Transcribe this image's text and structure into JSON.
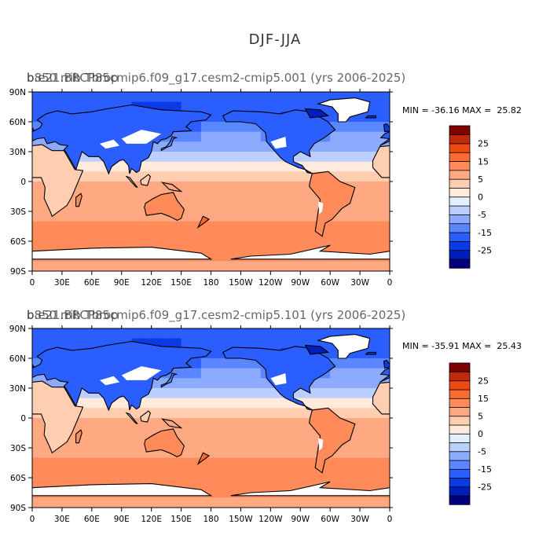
{
  "figure_title": "DJF-JJA",
  "x_ticks": [
    "0",
    "30E",
    "60E",
    "90E",
    "120E",
    "150E",
    "180",
    "150W",
    "120W",
    "90W",
    "60W",
    "30W",
    "0"
  ],
  "y_ticks": [
    "90N",
    "60N",
    "30N",
    "0",
    "30S",
    "60S",
    "90S"
  ],
  "colorbar": {
    "colors": [
      "#00007f",
      "#001ebd",
      "#0a3ae6",
      "#2a5eff",
      "#5a86ff",
      "#8cabff",
      "#bcd0ff",
      "#e4eeff",
      "#ffeadb",
      "#ffcdb0",
      "#ffa982",
      "#ff8a5a",
      "#ff6a30",
      "#ee4a14",
      "#c02a0a",
      "#800000"
    ],
    "labels": [
      "-25",
      "-15",
      "-5",
      "0",
      "5",
      "15",
      "25"
    ]
  },
  "chart_data": [
    {
      "type": "heatmap",
      "title": "b.e21.BRCP85cmip6.f09_g17.cesm2-cmip5.001 (yrs 2006-2025)",
      "overlay_title": "b850 rrib Tbrop",
      "stats": "MIN = -36.16 MAX =  25.82",
      "min": -36.16,
      "max": 25.82,
      "xlim": [
        0,
        360
      ],
      "ylim": [
        -90,
        90
      ]
    },
    {
      "type": "heatmap",
      "title": "b.e21.BRCP85cmip6.f09_g17.cesm2-cmip5.101 (yrs 2006-2025)",
      "overlay_title": "b850 rrib Tbrop",
      "stats": "MIN = -35.91 MAX =  25.43",
      "min": -35.91,
      "max": 25.43,
      "xlim": [
        0,
        360
      ],
      "ylim": [
        -90,
        90
      ]
    }
  ]
}
